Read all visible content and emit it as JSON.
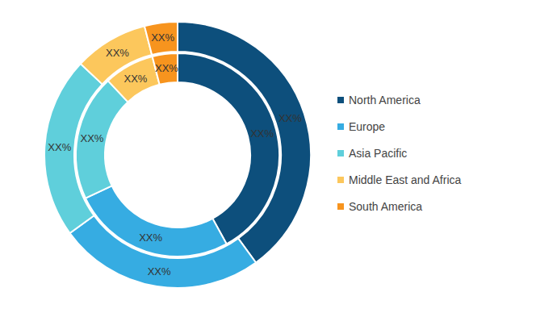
{
  "chart_data": {
    "type": "donut",
    "categories": [
      "North America",
      "Europe",
      "Asia Pacific",
      "Middle East and Africa",
      "South America"
    ],
    "colors": [
      "#0d4f7c",
      "#36ace2",
      "#5fcfdb",
      "#fcc75c",
      "#f7941e"
    ],
    "data_labels": true,
    "legend": "right",
    "series": [
      {
        "values": [
          42,
          26,
          20,
          8,
          4
        ],
        "value_labels": [
          "XX%",
          "XX%",
          "XX%",
          "XX%",
          "XX%"
        ]
      },
      {
        "values": [
          40,
          25,
          22,
          9,
          4
        ],
        "value_labels": [
          "XX%",
          "XX%",
          "XX%",
          "XX%",
          "XX%"
        ]
      }
    ]
  }
}
